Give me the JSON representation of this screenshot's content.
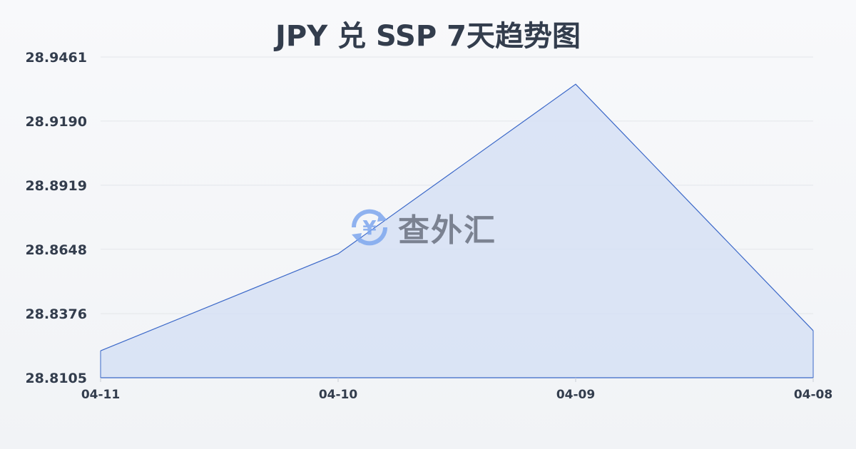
{
  "chart_data": {
    "type": "area",
    "title": "JPY 兑 SSP 7天趋势图",
    "categories": [
      "04-11",
      "04-10",
      "04-09",
      "04-08"
    ],
    "values": [
      28.8219,
      28.8629,
      28.9346,
      28.8304
    ],
    "yticks": [
      "28.8105",
      "28.8376",
      "28.8648",
      "28.8919",
      "28.9190",
      "28.9461"
    ],
    "ylim": [
      28.8105,
      28.9461
    ],
    "grid": true,
    "line_color": "#3a67c8",
    "fill_color": "#d6e0f5"
  },
  "watermark": {
    "text": "查外汇",
    "icon": "yen-exchange-icon"
  }
}
